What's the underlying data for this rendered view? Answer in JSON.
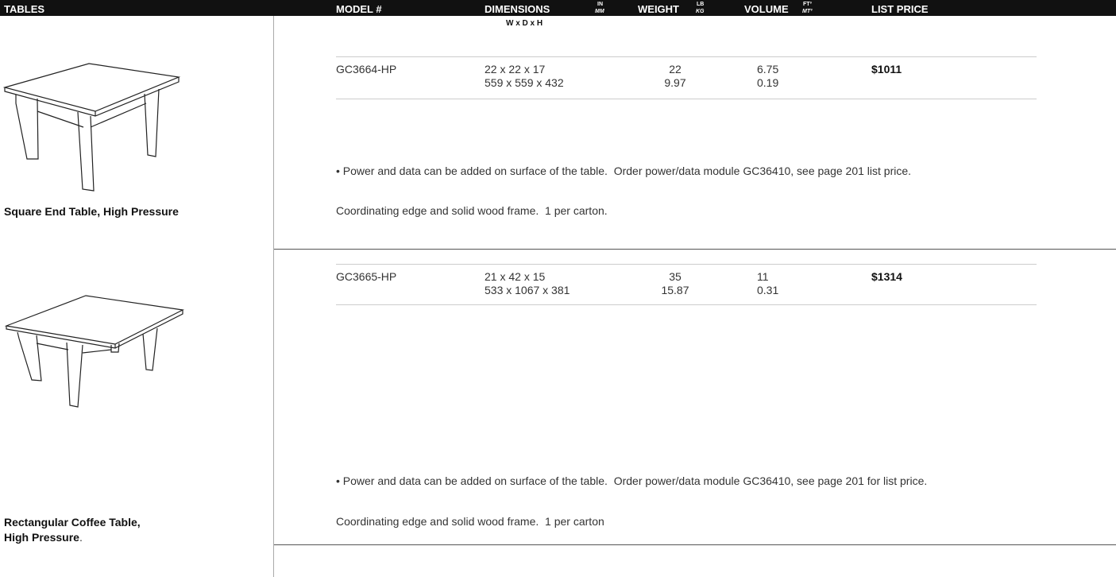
{
  "header": {
    "category": "TABLES",
    "model": "MODEL #",
    "dimensions": "DIMENSIONS",
    "dimensions_units": [
      "IN",
      "MM"
    ],
    "weight": "WEIGHT",
    "weight_units": [
      "LB",
      "KG"
    ],
    "volume": "VOLUME",
    "volume_units": [
      "FT³",
      "MT³"
    ],
    "price": "LIST PRICE",
    "dimensions_order": "W x D x H"
  },
  "products": [
    {
      "name": [
        "Square End Table, High Pressure"
      ],
      "model": "GC3664-HP",
      "dimensions": [
        "22 x 22 x 17",
        "559 x 559 x 432"
      ],
      "weight": [
        "22",
        "9.97"
      ],
      "volume": [
        "6.75",
        "0.19"
      ],
      "price": "$1011",
      "note": "• Power and data can be added on surface of the table.  Order power/data module GC36410, see page 201 list price.",
      "description": "Coordinating edge and solid wood frame.  1 per carton."
    },
    {
      "name": [
        "Rectangular Coffee Table,",
        "High Pressure",
        "."
      ],
      "model": "GC3665-HP",
      "dimensions": [
        "21 x 42 x 15",
        "533 x 1067 x 381"
      ],
      "weight": [
        "35",
        "15.87"
      ],
      "volume": [
        "11",
        "0.31"
      ],
      "price": "$1314",
      "note": "• Power and data can be added on surface of the table.  Order power/data module GC36410, see page 201 for list price.",
      "description": "Coordinating edge and solid wood frame.  1 per carton"
    }
  ]
}
